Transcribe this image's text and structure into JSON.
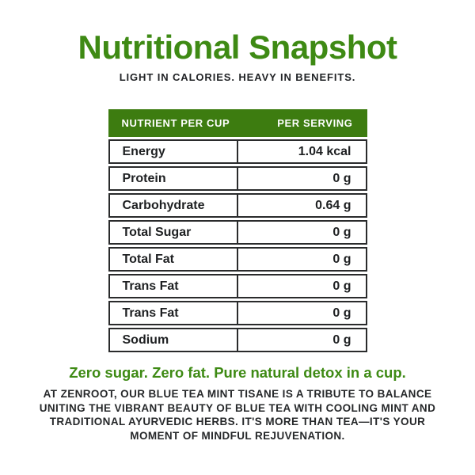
{
  "page": {
    "title": "Nutritional Snapshot",
    "subtitle": "LIGHT IN CALORIES. HEAVY IN BENEFITS.",
    "tagline": "Zero sugar. Zero fat. Pure natural detox in a cup.",
    "description": "AT ZENROOT, OUR BLUE TEA MINT TISANE IS A TRIBUTE TO BALANCE UNITING THE VIBRANT BEAUTY OF BLUE TEA WITH COOLING MINT AND TRADITIONAL AYURVEDIC HERBS. IT'S MORE THAN TEA—IT'S YOUR MOMENT OF MINDFUL REJUVENATION."
  },
  "table": {
    "headers": [
      "NUTRIENT PER CUP",
      "PER SERVING"
    ],
    "rows": [
      {
        "nutrient": "Energy",
        "value": "1.04 kcal"
      },
      {
        "nutrient": "Protein",
        "value": "0 g"
      },
      {
        "nutrient": "Carbohydrate",
        "value": "0.64 g"
      },
      {
        "nutrient": "Total Sugar",
        "value": "0 g"
      },
      {
        "nutrient": "Total Fat",
        "value": "0 g"
      },
      {
        "nutrient": "Trans Fat",
        "value": "0 g"
      },
      {
        "nutrient": "Trans Fat",
        "value": "0 g"
      },
      {
        "nutrient": "Sodium",
        "value": "0 g"
      }
    ]
  },
  "colors": {
    "brand_green": "#3e8a14",
    "table_header_green": "#3d7c10",
    "text_dark": "#212326",
    "border_dark": "#2a2b2c",
    "background": "#ffffff"
  }
}
